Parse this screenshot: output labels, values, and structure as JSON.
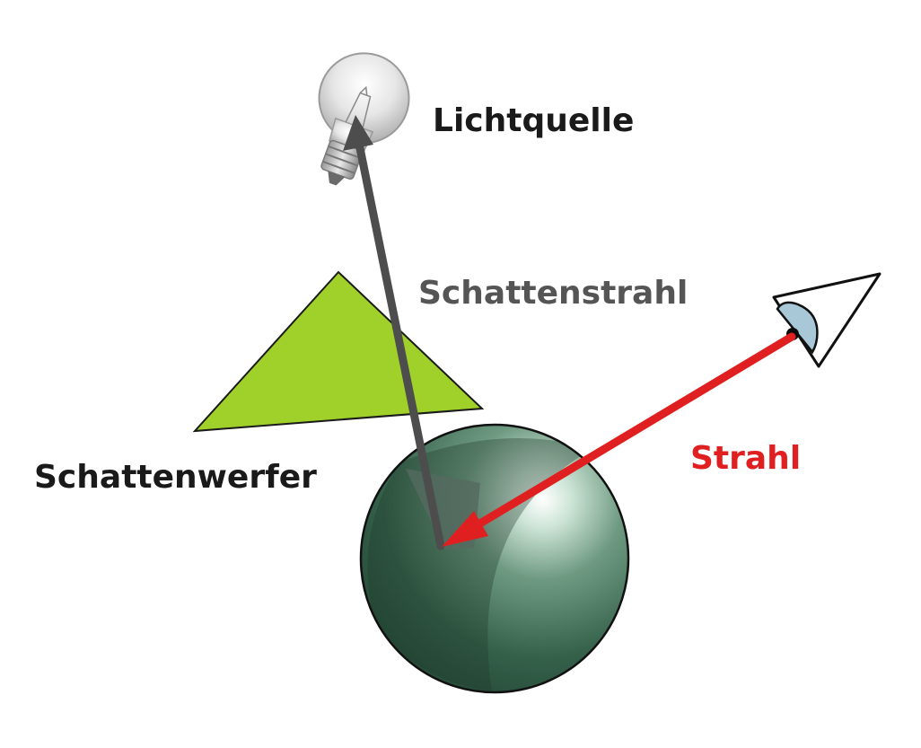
{
  "labels": {
    "light_source": "Lichtquelle",
    "shadow_ray": "Schattenstrahl",
    "shadow_caster": "Schattenwerfer",
    "ray": "Strahl"
  },
  "colors": {
    "text_dark": "#1a1a1a",
    "shadow_ray": "#4d4d4d",
    "ray": "#e02020",
    "triangle_fill": "#a0d02a",
    "sphere": "#2f5a44",
    "eye_iris": "#a8c8d8"
  },
  "icons": {
    "light": "light-bulb-icon",
    "eye": "eye-icon"
  }
}
